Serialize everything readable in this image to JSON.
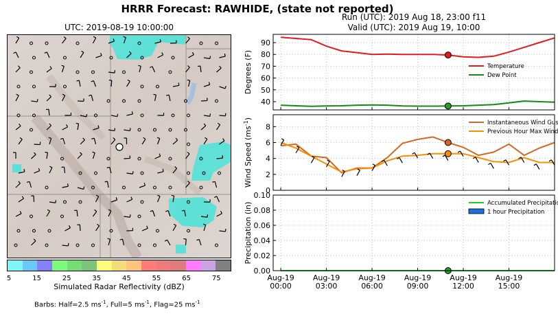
{
  "figure_title": "HRRR Forecast: RAWHIDE, (state not reported)",
  "map": {
    "title": "UTC: 2019-08-19 10:00:00",
    "colorbar": {
      "label": "Simulated Radar Reflectivity (dBZ)",
      "ticks": [
        "5",
        "15",
        "25",
        "35",
        "45",
        "55",
        "65",
        "75"
      ],
      "colors": [
        "#7ef6f6",
        "#6cc8f8",
        "#8480f6",
        "#7afc7a",
        "#76dc76",
        "#7cc47c",
        "#fcfc7c",
        "#f4dc7c",
        "#fcc47c",
        "#fc7c7c",
        "#ec7c7c",
        "#de7c7c",
        "#fc7cfc",
        "#c8a4e0",
        "#808080"
      ]
    },
    "barb_note_parts": [
      "Barbs: Half=2.5 ms",
      "-1",
      ", Full=5 ms",
      "-1",
      ", Flag=25 ms",
      "-1"
    ]
  },
  "run_info": {
    "line1": "Run (UTC): 2019 Aug 18, 23:00 f11",
    "line2": "Valid (UTC): 2019 Aug 19, 10:00"
  },
  "chart_data": [
    {
      "type": "line",
      "ylabel": "Degrees (F)",
      "ylim": [
        33,
        97
      ],
      "yticks": [
        40,
        50,
        60,
        70,
        80,
        90
      ],
      "grid": true,
      "legend_position": "center-right",
      "hours": [
        0,
        1,
        2,
        3,
        4,
        5,
        6,
        7,
        8,
        9,
        10,
        11,
        12,
        13,
        14,
        15,
        16,
        17,
        18
      ],
      "xticks": [
        {
          "hour": 0,
          "label": "Aug-19\n00:00"
        },
        {
          "hour": 3,
          "label": "Aug-19\n03:00"
        },
        {
          "hour": 6,
          "label": "Aug-19\n06:00"
        },
        {
          "hour": 9,
          "label": "Aug-19\n09:00"
        },
        {
          "hour": 12,
          "label": "Aug-19\n12:00"
        },
        {
          "hour": 15,
          "label": "Aug-19\n15:00"
        }
      ],
      "marker_hour": 11,
      "series": [
        {
          "name": "Temperature",
          "color": "#e31a1c",
          "marker_color": "#e31a1c",
          "values": [
            94.5,
            93.5,
            92.5,
            87,
            83,
            81.5,
            80,
            80.3,
            80,
            80,
            80,
            79.5,
            78,
            77.5,
            78.5,
            82,
            86,
            90,
            94
          ]
        },
        {
          "name": "Dew Point",
          "color": "#138a13",
          "marker_color": "#22a022",
          "values": [
            37,
            36.5,
            36,
            36.3,
            36.5,
            37,
            37.2,
            37,
            36.3,
            36.2,
            36.2,
            36.3,
            36.5,
            37,
            37.5,
            39,
            40.5,
            40,
            39.5
          ]
        }
      ]
    },
    {
      "type": "line",
      "ylabel": "Wind Speed (ms",
      "ylabel_sup": "-1",
      "ylabel_end": ")",
      "ylim": [
        0,
        9.5
      ],
      "yticks": [
        0,
        2,
        4,
        6,
        8
      ],
      "grid": true,
      "legend_position": "top-right",
      "hours": [
        0,
        1,
        2,
        3,
        4,
        5,
        6,
        7,
        8,
        9,
        10,
        11,
        12,
        13,
        14,
        15,
        16,
        17,
        18
      ],
      "marker_hour": 11,
      "series": [
        {
          "name": "Instantaneous Wind Gust",
          "color": "#d2691e",
          "marker_color": "#d2691e",
          "values": [
            5.6,
            5.8,
            4.3,
            4.1,
            2.2,
            2.8,
            2.8,
            4.1,
            5.9,
            6.4,
            6.7,
            6.0,
            5.4,
            4.4,
            4.8,
            5.8,
            4.4,
            5.3,
            6.0
          ]
        },
        {
          "name": "Previous Hour Max Wind",
          "color": "#ff8c00",
          "marker_color": "#ff8c00",
          "values": [
            6.0,
            5.3,
            4.3,
            3.3,
            2.3,
            2.7,
            2.8,
            3.7,
            4.3,
            4.4,
            4.6,
            4.6,
            4.6,
            4.1,
            3.6,
            3.5,
            4.1,
            3.5,
            3.5
          ]
        }
      ]
    },
    {
      "type": "bar",
      "ylabel": "Precipitation (in)",
      "ylim": [
        0,
        0.1
      ],
      "yticks": [
        "0.00",
        "0.02",
        "0.04",
        "0.06",
        "0.08",
        "0.10"
      ],
      "grid": true,
      "legend_position": "top-right",
      "hours": [
        0,
        1,
        2,
        3,
        4,
        5,
        6,
        7,
        8,
        9,
        10,
        11,
        12,
        13,
        14,
        15,
        16,
        17,
        18
      ],
      "marker_hour": 11,
      "series": [
        {
          "name": "Accumulated Precipitation",
          "color": "#22cc22",
          "marker_color": "#22a022",
          "values": [
            0,
            0,
            0,
            0,
            0,
            0,
            0,
            0,
            0,
            0,
            0,
            0,
            0,
            0,
            0,
            0,
            0,
            0,
            0
          ]
        },
        {
          "name": "1 hour Precipitation",
          "color": "#1e6fd9",
          "values": [
            0,
            0,
            0,
            0,
            0,
            0,
            0,
            0,
            0,
            0,
            0,
            0,
            0,
            0,
            0,
            0,
            0,
            0,
            0
          ]
        }
      ]
    }
  ]
}
